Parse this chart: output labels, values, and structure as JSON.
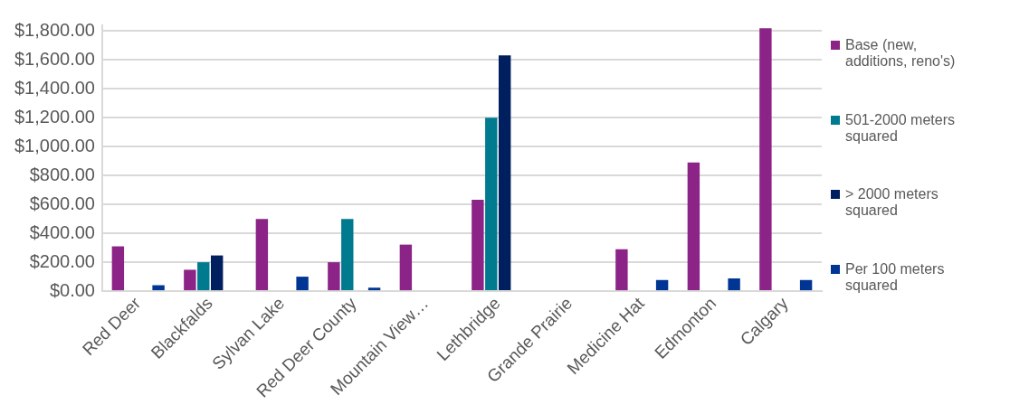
{
  "chart_data": {
    "type": "bar",
    "categories": [
      "Red Deer",
      "Blackfalds",
      "Sylvan Lake",
      "Red Deer County",
      "Mountain View…",
      "Lethbridge",
      "Grande Prairie",
      "Medicine Hat",
      "Edmonton",
      "Calgary"
    ],
    "series": [
      {
        "name": "Base (new, additions, reno's)",
        "color": "#8b2486",
        "values": [
          310,
          148,
          500,
          200,
          322,
          632,
          null,
          290,
          890,
          1820
        ]
      },
      {
        "name": "501-2000 meters squared",
        "color": "#007a8f",
        "values": [
          null,
          200,
          null,
          500,
          null,
          1200,
          null,
          null,
          null,
          null
        ]
      },
      {
        "name": "> 2000 meters squared",
        "color": "#001f5f",
        "values": [
          null,
          247,
          null,
          null,
          null,
          1632,
          null,
          null,
          null,
          null
        ]
      },
      {
        "name": "Per 100 meters squared",
        "color": "#003594",
        "values": [
          41,
          null,
          100,
          24,
          null,
          null,
          null,
          77,
          88,
          77
        ]
      }
    ],
    "ylim": [
      0,
      1840
    ],
    "yticks": [
      {
        "value": 0,
        "label": "$0.00"
      },
      {
        "value": 200,
        "label": "$200.00"
      },
      {
        "value": 400,
        "label": "$400.00"
      },
      {
        "value": 600,
        "label": "$600.00"
      },
      {
        "value": 800,
        "label": "$800.00"
      },
      {
        "value": 1000,
        "label": "$1,000.00"
      },
      {
        "value": 1200,
        "label": "$1,200.00"
      },
      {
        "value": 1400,
        "label": "$1,400.00"
      },
      {
        "value": 1600,
        "label": "$1,600.00"
      },
      {
        "value": 1800,
        "label": "$1,800.00"
      }
    ],
    "grid": "y",
    "legend": "right"
  }
}
